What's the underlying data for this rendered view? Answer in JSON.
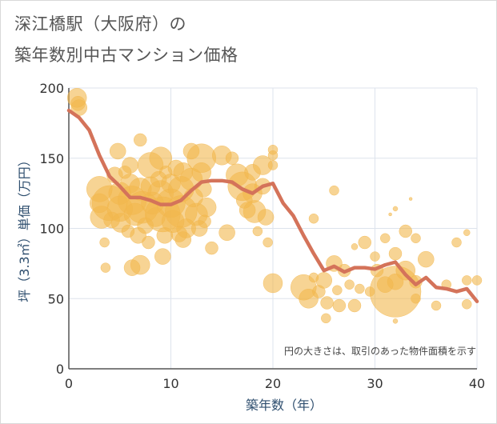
{
  "title_line1": "深江橋駅（大阪府）の",
  "title_line2": "築年数別中古マンション価格",
  "chart_data": {
    "type": "scatter",
    "title": "深江橋駅（大阪府）の 築年数別中古マンション価格",
    "xlabel": "築年数（年）",
    "ylabel": "坪（3.3㎡）単価（万円）",
    "xlim": [
      0,
      40
    ],
    "ylim": [
      0,
      200
    ],
    "xticks": [
      "0",
      "10",
      "20",
      "30",
      "40"
    ],
    "yticks": [
      "0",
      "50",
      "100",
      "150",
      "200"
    ],
    "grid": true,
    "note": "円の大きさは、取引のあった物件面積を示す",
    "colors": {
      "bubble": "#f2b74d",
      "line": "#d4735a",
      "grid": "#dde3ec"
    },
    "trend_line": {
      "x": [
        0,
        1,
        2,
        3,
        4,
        5,
        6,
        7,
        8,
        9,
        10,
        11,
        12,
        13,
        14,
        15,
        16,
        17,
        18,
        19,
        20,
        21,
        22,
        23,
        24,
        25,
        26,
        27,
        28,
        29,
        30,
        31,
        32,
        33,
        34,
        35,
        36,
        37,
        38,
        39,
        40
      ],
      "y": [
        184,
        179,
        170,
        152,
        137,
        130,
        122,
        122,
        120,
        117,
        117,
        120,
        127,
        133,
        134,
        134,
        133,
        128,
        125,
        130,
        132,
        118,
        109,
        95,
        82,
        70,
        73,
        69,
        72,
        72,
        71,
        74,
        76,
        67,
        60,
        65,
        58,
        57,
        55,
        57,
        48
      ]
    },
    "bubbles": [
      {
        "x": 0.8,
        "y": 193,
        "s": 12
      },
      {
        "x": 1,
        "y": 186,
        "s": 10
      },
      {
        "x": 0.9,
        "y": 189,
        "s": 9
      },
      {
        "x": 3,
        "y": 128,
        "s": 16
      },
      {
        "x": 3,
        "y": 118,
        "s": 12
      },
      {
        "x": 3.2,
        "y": 108,
        "s": 14
      },
      {
        "x": 3.5,
        "y": 90,
        "s": 6
      },
      {
        "x": 3.6,
        "y": 72,
        "s": 6
      },
      {
        "x": 4,
        "y": 118,
        "s": 22
      },
      {
        "x": 4.2,
        "y": 106,
        "s": 10
      },
      {
        "x": 4.5,
        "y": 138,
        "s": 10
      },
      {
        "x": 4.8,
        "y": 155,
        "s": 10
      },
      {
        "x": 5,
        "y": 125,
        "s": 14
      },
      {
        "x": 5,
        "y": 114,
        "s": 16
      },
      {
        "x": 5.1,
        "y": 104,
        "s": 12
      },
      {
        "x": 5.5,
        "y": 140,
        "s": 8
      },
      {
        "x": 5.8,
        "y": 98,
        "s": 8
      },
      {
        "x": 6,
        "y": 145,
        "s": 10
      },
      {
        "x": 6,
        "y": 132,
        "s": 12
      },
      {
        "x": 6.2,
        "y": 120,
        "s": 18
      },
      {
        "x": 6.5,
        "y": 110,
        "s": 14
      },
      {
        "x": 6.8,
        "y": 95,
        "s": 10
      },
      {
        "x": 6.2,
        "y": 72,
        "s": 10
      },
      {
        "x": 7,
        "y": 163,
        "s": 8
      },
      {
        "x": 7,
        "y": 128,
        "s": 14
      },
      {
        "x": 7.2,
        "y": 115,
        "s": 20
      },
      {
        "x": 7.5,
        "y": 102,
        "s": 10
      },
      {
        "x": 7.8,
        "y": 90,
        "s": 8
      },
      {
        "x": 7,
        "y": 74,
        "s": 12
      },
      {
        "x": 8,
        "y": 145,
        "s": 16
      },
      {
        "x": 8,
        "y": 130,
        "s": 12
      },
      {
        "x": 8.2,
        "y": 118,
        "s": 14
      },
      {
        "x": 8.5,
        "y": 108,
        "s": 12
      },
      {
        "x": 8.8,
        "y": 135,
        "s": 10
      },
      {
        "x": 9,
        "y": 150,
        "s": 14
      },
      {
        "x": 9,
        "y": 125,
        "s": 16
      },
      {
        "x": 9.2,
        "y": 110,
        "s": 22
      },
      {
        "x": 9.4,
        "y": 95,
        "s": 10
      },
      {
        "x": 9.2,
        "y": 80,
        "s": 10
      },
      {
        "x": 9.5,
        "y": 140,
        "s": 8
      },
      {
        "x": 10,
        "y": 132,
        "s": 12
      },
      {
        "x": 10,
        "y": 118,
        "s": 18
      },
      {
        "x": 10.2,
        "y": 105,
        "s": 14
      },
      {
        "x": 10.5,
        "y": 143,
        "s": 10
      },
      {
        "x": 10.8,
        "y": 96,
        "s": 10
      },
      {
        "x": 11,
        "y": 128,
        "s": 16
      },
      {
        "x": 11,
        "y": 112,
        "s": 20
      },
      {
        "x": 11.2,
        "y": 140,
        "s": 12
      },
      {
        "x": 11.5,
        "y": 100,
        "s": 12
      },
      {
        "x": 11.2,
        "y": 92,
        "s": 10
      },
      {
        "x": 12,
        "y": 155,
        "s": 10
      },
      {
        "x": 12,
        "y": 135,
        "s": 14
      },
      {
        "x": 12.2,
        "y": 122,
        "s": 12
      },
      {
        "x": 12.5,
        "y": 110,
        "s": 14
      },
      {
        "x": 12.8,
        "y": 100,
        "s": 10
      },
      {
        "x": 13,
        "y": 150,
        "s": 18
      },
      {
        "x": 13,
        "y": 140,
        "s": 12
      },
      {
        "x": 13.2,
        "y": 128,
        "s": 10
      },
      {
        "x": 13.5,
        "y": 115,
        "s": 12
      },
      {
        "x": 13.3,
        "y": 105,
        "s": 8
      },
      {
        "x": 14,
        "y": 86,
        "s": 8
      },
      {
        "x": 15,
        "y": 152,
        "s": 12
      },
      {
        "x": 16,
        "y": 150,
        "s": 8
      },
      {
        "x": 15.5,
        "y": 97,
        "s": 10
      },
      {
        "x": 16.5,
        "y": 138,
        "s": 14
      },
      {
        "x": 17,
        "y": 130,
        "s": 18
      },
      {
        "x": 17.2,
        "y": 120,
        "s": 10
      },
      {
        "x": 17.5,
        "y": 113,
        "s": 10
      },
      {
        "x": 18,
        "y": 140,
        "s": 10
      },
      {
        "x": 18,
        "y": 125,
        "s": 12
      },
      {
        "x": 18.2,
        "y": 112,
        "s": 14
      },
      {
        "x": 18.5,
        "y": 98,
        "s": 6
      },
      {
        "x": 19,
        "y": 145,
        "s": 12
      },
      {
        "x": 19,
        "y": 130,
        "s": 10
      },
      {
        "x": 19.3,
        "y": 108,
        "s": 10
      },
      {
        "x": 19.5,
        "y": 90,
        "s": 6
      },
      {
        "x": 20,
        "y": 156,
        "s": 6
      },
      {
        "x": 20,
        "y": 152,
        "s": 6
      },
      {
        "x": 20,
        "y": 145,
        "s": 6
      },
      {
        "x": 20,
        "y": 61,
        "s": 12
      },
      {
        "x": 23,
        "y": 58,
        "s": 16
      },
      {
        "x": 23.5,
        "y": 50,
        "s": 12
      },
      {
        "x": 24,
        "y": 107,
        "s": 6
      },
      {
        "x": 24,
        "y": 65,
        "s": 6
      },
      {
        "x": 24.5,
        "y": 55,
        "s": 8
      },
      {
        "x": 25,
        "y": 63,
        "s": 10
      },
      {
        "x": 25.3,
        "y": 47,
        "s": 8
      },
      {
        "x": 25.2,
        "y": 36,
        "s": 6
      },
      {
        "x": 26,
        "y": 127,
        "s": 6
      },
      {
        "x": 26,
        "y": 75,
        "s": 10
      },
      {
        "x": 26.3,
        "y": 56,
        "s": 6
      },
      {
        "x": 26.5,
        "y": 45,
        "s": 8
      },
      {
        "x": 27,
        "y": 70,
        "s": 8
      },
      {
        "x": 27.5,
        "y": 60,
        "s": 6
      },
      {
        "x": 28,
        "y": 87,
        "s": 4
      },
      {
        "x": 28,
        "y": 45,
        "s": 8
      },
      {
        "x": 28.5,
        "y": 57,
        "s": 6
      },
      {
        "x": 29,
        "y": 90,
        "s": 8
      },
      {
        "x": 29.5,
        "y": 55,
        "s": 6
      },
      {
        "x": 30,
        "y": 80,
        "s": 6
      },
      {
        "x": 30.2,
        "y": 70,
        "s": 8
      },
      {
        "x": 31,
        "y": 93,
        "s": 6
      },
      {
        "x": 31,
        "y": 60,
        "s": 10
      },
      {
        "x": 31.5,
        "y": 110,
        "s": 2
      },
      {
        "x": 32,
        "y": 114,
        "s": 3
      },
      {
        "x": 32,
        "y": 82,
        "s": 8
      },
      {
        "x": 32,
        "y": 62,
        "s": 10
      },
      {
        "x": 32,
        "y": 55,
        "s": 32
      },
      {
        "x": 32,
        "y": 34,
        "s": 3
      },
      {
        "x": 33,
        "y": 98,
        "s": 8
      },
      {
        "x": 33,
        "y": 70,
        "s": 12
      },
      {
        "x": 33.5,
        "y": 121,
        "s": 2
      },
      {
        "x": 34,
        "y": 93,
        "s": 6
      },
      {
        "x": 34,
        "y": 62,
        "s": 8
      },
      {
        "x": 34,
        "y": 50,
        "s": 6
      },
      {
        "x": 35,
        "y": 78,
        "s": 10
      },
      {
        "x": 36,
        "y": 45,
        "s": 6
      },
      {
        "x": 37,
        "y": 60,
        "s": 6
      },
      {
        "x": 38,
        "y": 90,
        "s": 6
      },
      {
        "x": 39,
        "y": 97,
        "s": 4
      },
      {
        "x": 39,
        "y": 46,
        "s": 6
      },
      {
        "x": 39,
        "y": 63,
        "s": 6
      },
      {
        "x": 40,
        "y": 63,
        "s": 6
      }
    ]
  }
}
